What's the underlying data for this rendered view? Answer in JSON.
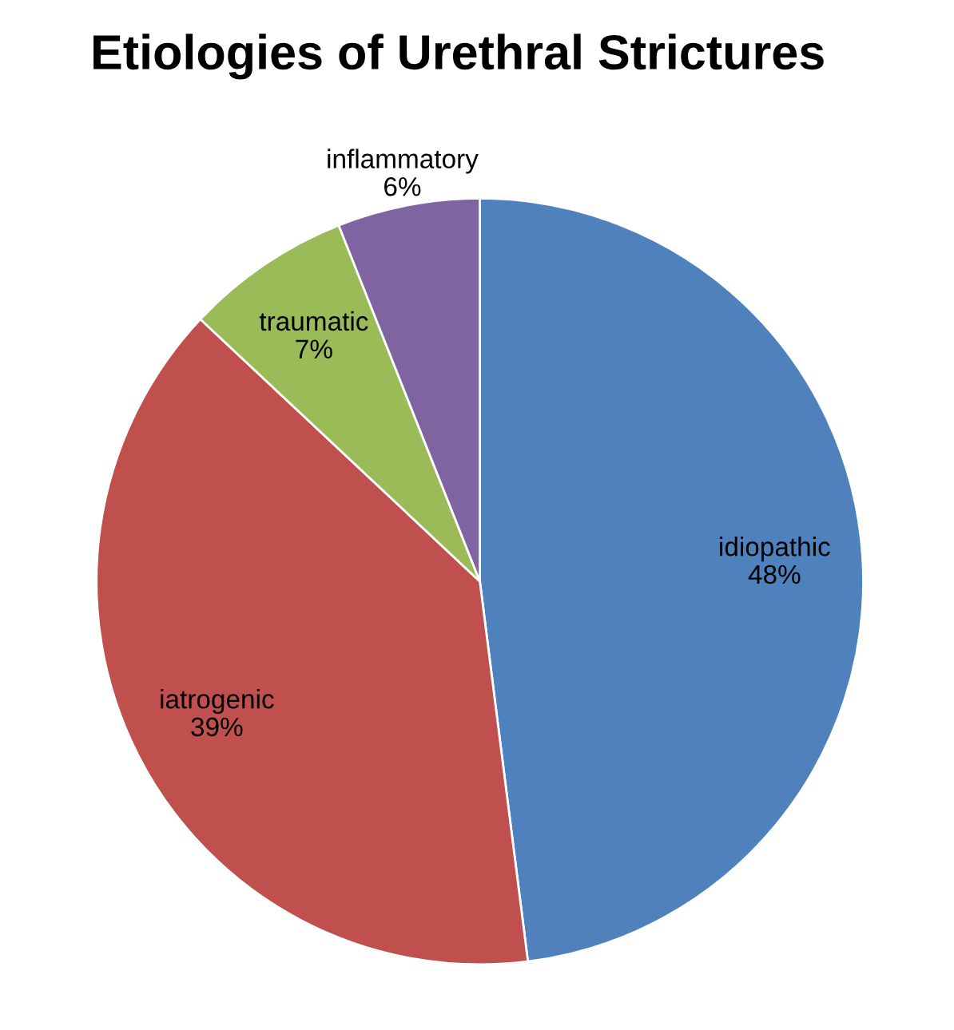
{
  "chart_data": {
    "type": "pie",
    "title": "Etiologies of Urethral Strictures",
    "categories": [
      "idiopathic",
      "iatrogenic",
      "traumatic",
      "inflammatory"
    ],
    "values": [
      48,
      39,
      7,
      6
    ],
    "colors": [
      "#4f81bd",
      "#c0504d",
      "#9bbb59",
      "#8064a2"
    ],
    "value_labels": [
      "48%",
      "39%",
      "7%",
      "6%"
    ]
  }
}
